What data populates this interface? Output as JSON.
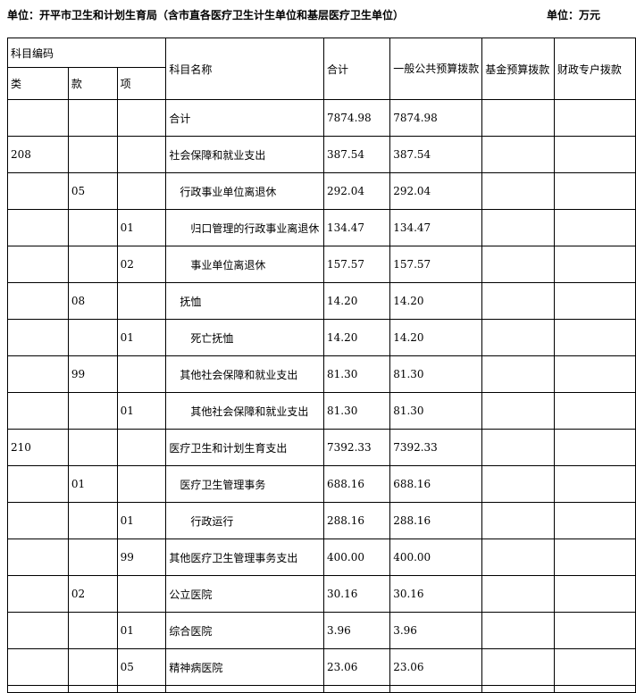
{
  "header": {
    "unit_line": "单位：开平市卫生和计划生育局（含市直各医疗卫生计生单位和基层医疗卫生单位）",
    "amount_unit": "单位：万元"
  },
  "table": {
    "headers": {
      "subject_code": "科目编码",
      "category": "类",
      "section": "款",
      "item": "项",
      "subject_name": "科目名称",
      "total": "合计",
      "public_budget": "一般公共预算拨款",
      "fund_budget": "基金预算拨款",
      "fiscal_account": "财政专户拨款"
    },
    "rows": [
      {
        "category": "",
        "section": "",
        "item": "",
        "name": "合计",
        "indent": 0,
        "total": "7874.98",
        "public_budget": "7874.98",
        "fund_budget": "",
        "fiscal_account": ""
      },
      {
        "category": "208",
        "section": "",
        "item": "",
        "name": "社会保障和就业支出",
        "indent": 0,
        "total": "387.54",
        "public_budget": "387.54",
        "fund_budget": "",
        "fiscal_account": ""
      },
      {
        "category": "",
        "section": "05",
        "item": "",
        "name": "行政事业单位离退休",
        "indent": 1,
        "total": "292.04",
        "public_budget": "292.04",
        "fund_budget": "",
        "fiscal_account": ""
      },
      {
        "category": "",
        "section": "",
        "item": "01",
        "name": "归口管理的行政事业离退休",
        "indent": 2,
        "total": "134.47",
        "public_budget": "134.47",
        "fund_budget": "",
        "fiscal_account": ""
      },
      {
        "category": "",
        "section": "",
        "item": "02",
        "name": "事业单位离退休",
        "indent": 2,
        "total": "157.57",
        "public_budget": "157.57",
        "fund_budget": "",
        "fiscal_account": ""
      },
      {
        "category": "",
        "section": "08",
        "item": "",
        "name": "抚恤",
        "indent": 1,
        "total": "14.20",
        "public_budget": "14.20",
        "fund_budget": "",
        "fiscal_account": ""
      },
      {
        "category": "",
        "section": "",
        "item": "01",
        "name": "死亡抚恤",
        "indent": 2,
        "total": "14.20",
        "public_budget": "14.20",
        "fund_budget": "",
        "fiscal_account": ""
      },
      {
        "category": "",
        "section": "99",
        "item": "",
        "name": "其他社会保障和就业支出",
        "indent": 1,
        "total": "81.30",
        "public_budget": "81.30",
        "fund_budget": "",
        "fiscal_account": ""
      },
      {
        "category": "",
        "section": "",
        "item": "01",
        "name": "其他社会保障和就业支出",
        "indent": 2,
        "total": "81.30",
        "public_budget": "81.30",
        "fund_budget": "",
        "fiscal_account": ""
      },
      {
        "category": "210",
        "section": "",
        "item": "",
        "name": "医疗卫生和计划生育支出",
        "indent": 0,
        "total": "7392.33",
        "public_budget": "7392.33",
        "fund_budget": "",
        "fiscal_account": ""
      },
      {
        "category": "",
        "section": "01",
        "item": "",
        "name": "医疗卫生管理事务",
        "indent": 1,
        "total": "688.16",
        "public_budget": "688.16",
        "fund_budget": "",
        "fiscal_account": ""
      },
      {
        "category": "",
        "section": "",
        "item": "01",
        "name": "行政运行",
        "indent": 2,
        "total": "288.16",
        "public_budget": "288.16",
        "fund_budget": "",
        "fiscal_account": ""
      },
      {
        "category": "",
        "section": "",
        "item": "99",
        "name": "其他医疗卫生管理事务支出",
        "indent": 0,
        "total": "400.00",
        "public_budget": "400.00",
        "fund_budget": "",
        "fiscal_account": ""
      },
      {
        "category": "",
        "section": "02",
        "item": "",
        "name": "公立医院",
        "indent": 0,
        "total": "30.16",
        "public_budget": "30.16",
        "fund_budget": "",
        "fiscal_account": ""
      },
      {
        "category": "",
        "section": "",
        "item": "01",
        "name": "综合医院",
        "indent": 0,
        "total": "3.96",
        "public_budget": "3.96",
        "fund_budget": "",
        "fiscal_account": ""
      },
      {
        "category": "",
        "section": "",
        "item": "05",
        "name": "精神病医院",
        "indent": 0,
        "total": "23.06",
        "public_budget": "23.06",
        "fund_budget": "",
        "fiscal_account": ""
      }
    ]
  },
  "colors": {
    "text": "#000000",
    "border": "#000000",
    "background": "#ffffff"
  }
}
